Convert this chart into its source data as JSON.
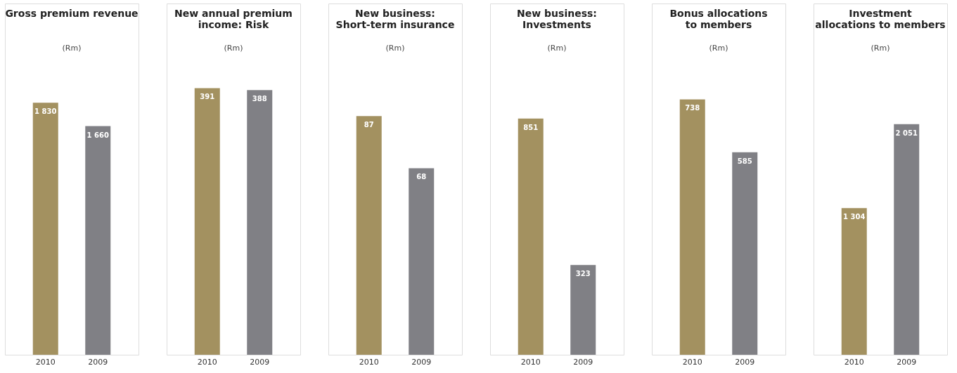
{
  "chart_data": [
    {
      "type": "bar",
      "title": "Gross premium revenue",
      "subtitle": "(Rm)",
      "categories": [
        "2010",
        "2009"
      ],
      "values": [
        1830,
        1660
      ],
      "colors": [
        "#a39160",
        "#808085"
      ],
      "value_labels": [
        "1 830",
        "1 660"
      ],
      "ylim": [
        0,
        2550
      ],
      "tick_labels": "x"
    },
    {
      "type": "bar",
      "title": "New annual premium income: Risk",
      "subtitle": "(Rm)",
      "categories": [
        "2010",
        "2009"
      ],
      "values": [
        391,
        388
      ],
      "colors": [
        "#a39160",
        "#808085"
      ],
      "value_labels": [
        "391",
        "388"
      ],
      "ylim": [
        0,
        515
      ],
      "tick_labels": "x"
    },
    {
      "type": "bar",
      "title": "New business: Short-term insurance",
      "subtitle": "(Rm)",
      "categories": [
        "2010",
        "2009"
      ],
      "values": [
        87,
        68
      ],
      "colors": [
        "#a39160",
        "#808085"
      ],
      "value_labels": [
        "87",
        "68"
      ],
      "ylim": [
        0,
        128
      ],
      "tick_labels": "x"
    },
    {
      "type": "bar",
      "title": "New business: Investments",
      "subtitle": "(Rm)",
      "categories": [
        "2010",
        "2009"
      ],
      "values": [
        851,
        323
      ],
      "colors": [
        "#a39160",
        "#808085"
      ],
      "value_labels": [
        "851",
        "323"
      ],
      "ylim": [
        0,
        1265
      ],
      "tick_labels": "x"
    },
    {
      "type": "bar",
      "title": "Bonus allocations to members",
      "subtitle": "(Rm)",
      "categories": [
        "2010",
        "2009"
      ],
      "values": [
        738,
        585
      ],
      "colors": [
        "#a39160",
        "#808085"
      ],
      "value_labels": [
        "738",
        "585"
      ],
      "ylim": [
        0,
        1015
      ],
      "tick_labels": "x"
    },
    {
      "type": "bar",
      "title": "Investment allocations to members",
      "subtitle": "(Rm)",
      "categories": [
        "2010",
        "2009"
      ],
      "values": [
        1304,
        2051
      ],
      "colors": [
        "#a39160",
        "#808085"
      ],
      "value_labels": [
        "1 304",
        "2 051"
      ],
      "ylim": [
        0,
        3125
      ],
      "tick_labels": "x"
    }
  ]
}
